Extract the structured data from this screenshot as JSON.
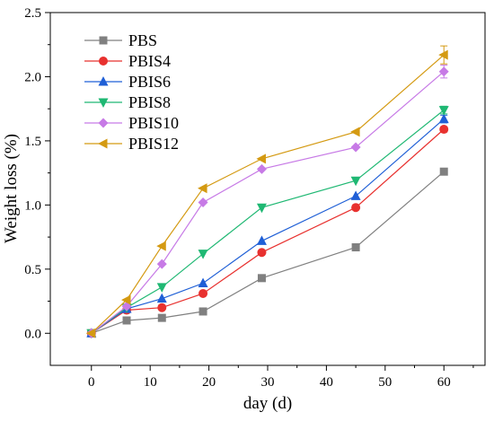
{
  "chart_data": {
    "type": "line",
    "xlabel": "day (d)",
    "ylabel": "Weight loss (%)",
    "xlim": [
      -7,
      67
    ],
    "ylim": [
      -0.25,
      2.5
    ],
    "xticks": [
      0,
      10,
      20,
      30,
      40,
      50,
      60
    ],
    "yticks": [
      0.0,
      0.5,
      1.0,
      1.5,
      2.0,
      2.5
    ],
    "xtick_labels": [
      "0",
      "10",
      "20",
      "30",
      "40",
      "50",
      "60"
    ],
    "ytick_labels": [
      "0.0",
      "0.5",
      "1.0",
      "1.5",
      "2.0",
      "2.5"
    ],
    "grid": false,
    "legend_position": "top-left",
    "x": [
      0,
      6,
      12,
      19,
      29,
      45,
      60
    ],
    "series": [
      {
        "name": "PBS",
        "color": "#808080",
        "marker": "square",
        "values": [
          0.0,
          0.1,
          0.12,
          0.17,
          0.43,
          0.67,
          1.26
        ]
      },
      {
        "name": "PBIS4",
        "color": "#e8312f",
        "marker": "circle",
        "values": [
          0.0,
          0.18,
          0.2,
          0.31,
          0.63,
          0.98,
          1.59
        ]
      },
      {
        "name": "PBIS6",
        "color": "#1f5fd6",
        "marker": "triangle-up",
        "values": [
          0.0,
          0.19,
          0.27,
          0.39,
          0.72,
          1.07,
          1.67
        ]
      },
      {
        "name": "PBIS8",
        "color": "#1fb873",
        "marker": "triangle-down",
        "values": [
          0.0,
          0.2,
          0.36,
          0.62,
          0.98,
          1.19,
          1.74
        ]
      },
      {
        "name": "PBIS10",
        "color": "#c77ae6",
        "marker": "diamond",
        "values": [
          0.0,
          0.21,
          0.54,
          1.02,
          1.28,
          1.45,
          2.04
        ]
      },
      {
        "name": "PBIS12",
        "color": "#d49a12",
        "marker": "triangle-left",
        "values": [
          0.0,
          0.26,
          0.68,
          1.13,
          1.36,
          1.57,
          2.17
        ]
      }
    ],
    "error_bars": [
      {
        "series": "PBIS12",
        "x": 60,
        "err": 0.07
      },
      {
        "series": "PBIS10",
        "x": 60,
        "err": 0.05
      },
      {
        "series": "PBIS8",
        "x": 60,
        "err": 0.03
      },
      {
        "series": "PBIS6",
        "x": 60,
        "err": 0.03
      },
      {
        "series": "PBIS4",
        "x": 60,
        "err": 0.02
      }
    ]
  }
}
